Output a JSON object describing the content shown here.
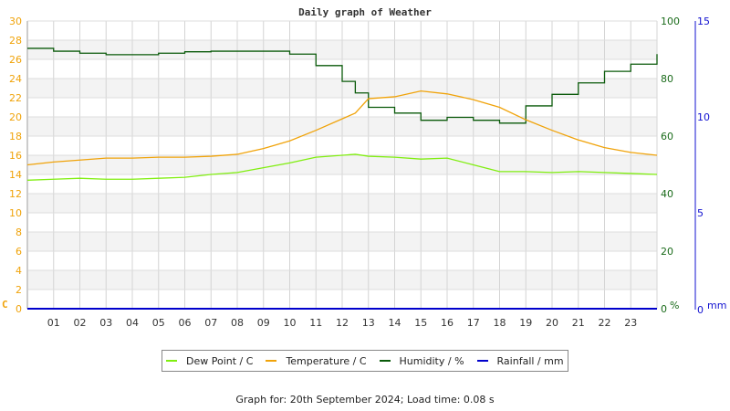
{
  "chart_data": {
    "type": "line",
    "title": "Daily graph of Weather",
    "xlabel": "",
    "x_ticks": [
      "01",
      "02",
      "03",
      "04",
      "05",
      "06",
      "07",
      "08",
      "09",
      "10",
      "11",
      "12",
      "13",
      "14",
      "15",
      "16",
      "17",
      "18",
      "19",
      "20",
      "21",
      "22",
      "23"
    ],
    "y_left": {
      "label": "C",
      "ticks": [
        0,
        2,
        4,
        6,
        8,
        10,
        12,
        14,
        16,
        18,
        20,
        22,
        24,
        26,
        28,
        30
      ],
      "range": [
        0,
        30
      ],
      "color": "#f0a30a"
    },
    "y_right_humidity": {
      "label": "%",
      "ticks": [
        0,
        20,
        40,
        60,
        80,
        100
      ],
      "range": [
        0,
        100
      ],
      "color": "#1a6b1a"
    },
    "y_right_rain": {
      "label": "mm",
      "ticks": [
        0,
        5,
        10,
        15
      ],
      "range": [
        0,
        15
      ],
      "color": "#1010d0"
    },
    "grid": true,
    "legend_position": "bottom",
    "x": [
      0,
      1,
      2,
      3,
      4,
      5,
      6,
      7,
      8,
      9,
      10,
      11,
      12,
      12.5,
      13,
      14,
      15,
      16,
      17,
      18,
      19,
      20,
      21,
      22,
      23,
      24
    ],
    "series": [
      {
        "name": "Dew Point / C",
        "color": "#80ee10",
        "values": [
          13.4,
          13.5,
          13.6,
          13.5,
          13.5,
          13.6,
          13.7,
          14.0,
          14.2,
          14.7,
          15.2,
          15.8,
          16.0,
          16.1,
          15.9,
          15.8,
          15.6,
          15.7,
          15.0,
          14.3,
          14.3,
          14.2,
          14.3,
          14.2,
          14.1,
          14.0
        ]
      },
      {
        "name": "Temperature / C",
        "color": "#f0a30a",
        "values": [
          15.0,
          15.3,
          15.5,
          15.7,
          15.7,
          15.8,
          15.8,
          15.9,
          16.1,
          16.7,
          17.5,
          18.6,
          19.8,
          20.4,
          21.9,
          22.1,
          22.7,
          22.4,
          21.8,
          21.0,
          19.7,
          18.6,
          17.6,
          16.8,
          16.3,
          16.0
        ]
      },
      {
        "name": "Humidity / %",
        "color": "#0a5a0a",
        "values": [
          90.5,
          89.5,
          88.8,
          88.3,
          88.3,
          88.8,
          89.3,
          89.5,
          89.5,
          89.5,
          88.5,
          84.5,
          79,
          75,
          70,
          68,
          65.5,
          66.5,
          65.5,
          64.5,
          70.5,
          74.5,
          78.5,
          82.5,
          85,
          88.5
        ]
      },
      {
        "name": "Rainfall / mm",
        "color": "#0000cc",
        "values": [
          0,
          0,
          0,
          0,
          0,
          0,
          0,
          0,
          0,
          0,
          0,
          0,
          0,
          0,
          0,
          0,
          0,
          0,
          0,
          0,
          0,
          0,
          0,
          0,
          0,
          0
        ]
      }
    ]
  },
  "legend": {
    "items": [
      {
        "label": "Dew Point / C",
        "color": "#80ee10"
      },
      {
        "label": "Temperature / C",
        "color": "#f0a30a"
      },
      {
        "label": "Humidity / %",
        "color": "#0a5a0a"
      },
      {
        "label": "Rainfall / mm",
        "color": "#0000cc"
      }
    ]
  },
  "footer": {
    "text": "Graph for: 20th September 2024; Load time: 0.08 s"
  }
}
